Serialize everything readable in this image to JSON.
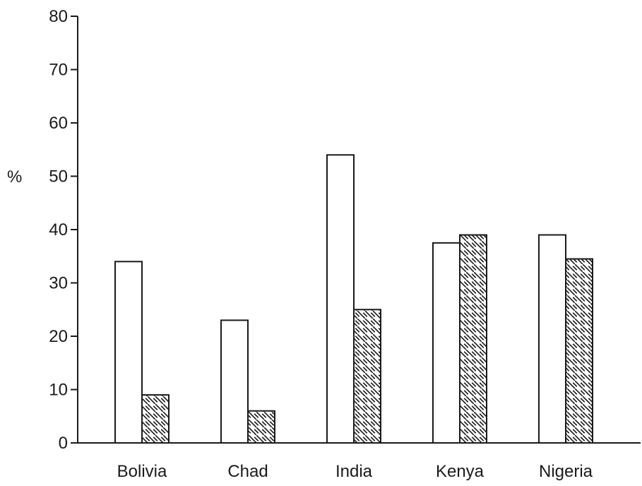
{
  "chart_data": {
    "type": "bar",
    "title": "",
    "xlabel": "",
    "ylabel": "%",
    "ylim": [
      0,
      80
    ],
    "yticks": [
      0,
      10,
      20,
      30,
      40,
      50,
      60,
      70,
      80
    ],
    "grid": false,
    "categories": [
      "Bolivia",
      "Chad",
      "India",
      "Kenya",
      "Nigeria"
    ],
    "series": [
      {
        "fill": "plain",
        "values": [
          34,
          23,
          54,
          37.5,
          39
        ]
      },
      {
        "fill": "hatched",
        "values": [
          9,
          6,
          25,
          39,
          34.5
        ]
      }
    ]
  }
}
